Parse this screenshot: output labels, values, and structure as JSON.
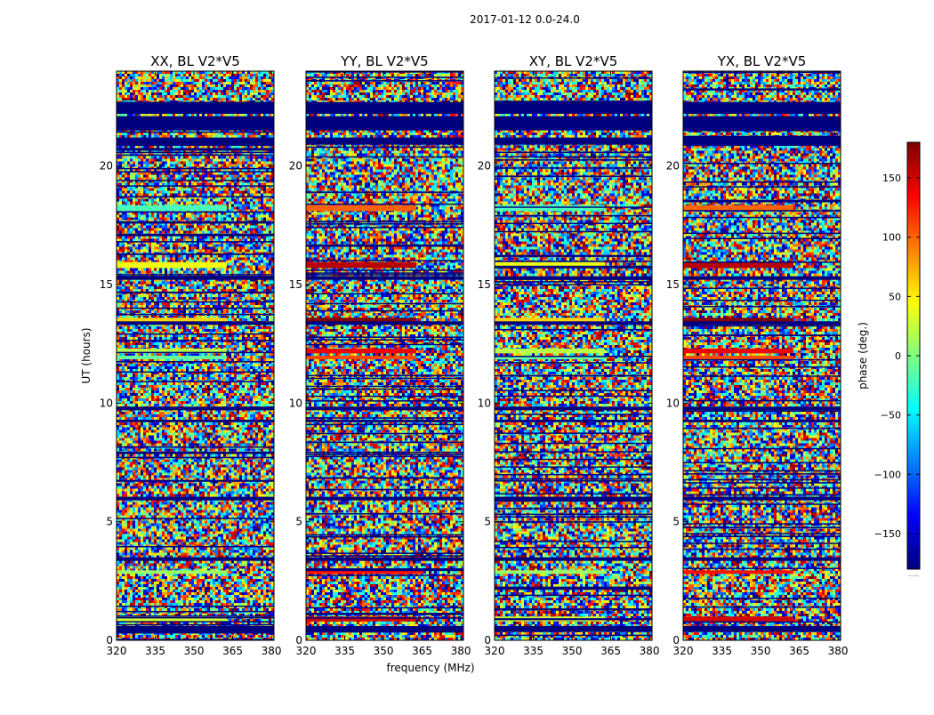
{
  "chart_data": {
    "type": "heatmap",
    "suptitle": "2017-01-12 0.0-24.0",
    "xlabel": "frequency (MHz)",
    "ylabel": "UT (hours)",
    "xlim": [
      320,
      381
    ],
    "ylim": [
      0,
      24
    ],
    "xticks": [
      320,
      335,
      350,
      365,
      380
    ],
    "yticks": [
      0,
      5,
      10,
      15,
      20
    ],
    "colorbar": {
      "label": "phase (deg.)",
      "range": [
        -180,
        180
      ],
      "ticks": [
        150,
        100,
        50,
        0,
        -50,
        -100,
        -150
      ],
      "tick_labels": [
        "150",
        "100",
        "50",
        "0",
        "−50",
        "−100",
        "−150"
      ],
      "colormap": "jet",
      "footer": "......"
    },
    "panels": [
      {
        "title": "XX, BL V2*V5",
        "polarization": "XX",
        "baseline": "V2*V5"
      },
      {
        "title": "YY, BL V2*V5",
        "polarization": "YY",
        "baseline": "V2*V5"
      },
      {
        "title": "XY, BL V2*V5",
        "polarization": "XY",
        "baseline": "V2*V5"
      },
      {
        "title": "YX, BL V2*V5",
        "polarization": "YX",
        "baseline": "V2*V5"
      }
    ],
    "flagged_ut_bands": [
      [
        22.2,
        22.7
      ],
      [
        21.5,
        22.1
      ],
      [
        20.9,
        21.2
      ],
      [
        15.2,
        15.35
      ],
      [
        13.3,
        13.45
      ],
      [
        9.7,
        9.85
      ],
      [
        9.2,
        9.3
      ],
      [
        5.9,
        6.05
      ],
      [
        3.35,
        3.5
      ],
      [
        0.35,
        0.6
      ]
    ],
    "coherent_ut_bands": [
      {
        "range": [
          18.1,
          18.35
        ],
        "phase": -20
      },
      {
        "range": [
          15.7,
          15.95
        ],
        "phase": 40
      },
      {
        "range": [
          13.4,
          13.6
        ],
        "phase": 60
      },
      {
        "range": [
          12.1,
          12.3
        ],
        "phase": 20
      },
      {
        "range": [
          11.85,
          12.0
        ],
        "phase": -10
      },
      {
        "range": [
          2.8,
          2.95
        ],
        "phase": 10
      },
      {
        "range": [
          0.8,
          1.0
        ],
        "phase": 30
      }
    ]
  }
}
